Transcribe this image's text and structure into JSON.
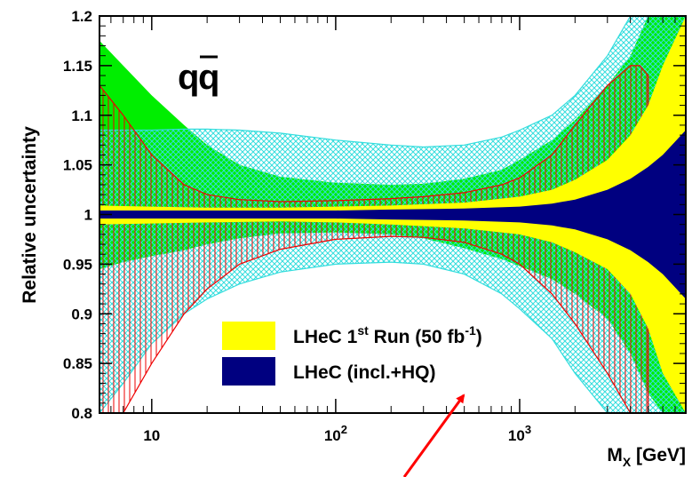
{
  "chart_data": {
    "type": "area",
    "title": "",
    "annotation": {
      "text": "q",
      "bar_text": "q"
    },
    "xlabel": {
      "main": "M",
      "sub": "X",
      "rest": " [GeV]"
    },
    "ylabel": "Relative uncertainty",
    "x_scale": "log",
    "xlim": [
      5.2,
      8000
    ],
    "ylim": [
      0.8,
      1.2
    ],
    "grid": false,
    "y_ticks": [
      "0.8",
      "0.85",
      "0.9",
      "0.95",
      "1",
      "1.05",
      "1.1",
      "1.15",
      "1.2"
    ],
    "x_ticks": [
      {
        "base": "10",
        "exp": ""
      },
      {
        "base": "10",
        "exp": "2"
      },
      {
        "base": "10",
        "exp": "3"
      }
    ],
    "legend_position": "bottom-center",
    "colors": {
      "green": "#00ee00",
      "yellow": "#ffff00",
      "navy": "#000080",
      "cyan": "#33dddd",
      "red": "#ee0000",
      "blue": "#1111cc",
      "arrow": "#ff0000"
    },
    "series": [
      {
        "name": "",
        "style": "green-fill",
        "x": [
          5.2,
          7,
          10,
          15,
          20,
          30,
          50,
          100,
          200,
          300,
          500,
          800,
          1000,
          1500,
          2000,
          3000,
          4000,
          5000,
          6000,
          8000
        ],
        "upper": [
          1.175,
          1.15,
          1.12,
          1.09,
          1.07,
          1.05,
          1.038,
          1.032,
          1.03,
          1.031,
          1.036,
          1.045,
          1.055,
          1.075,
          1.095,
          1.13,
          1.16,
          1.2,
          1.2,
          1.2
        ],
        "lower": [
          0.945,
          0.952,
          0.958,
          0.964,
          0.97,
          0.976,
          0.981,
          0.982,
          0.98,
          0.976,
          0.966,
          0.955,
          0.948,
          0.935,
          0.92,
          0.895,
          0.86,
          0.82,
          0.8,
          0.8
        ]
      },
      {
        "name": "",
        "style": "cyan-hatch",
        "x": [
          5.2,
          7,
          10,
          15,
          20,
          30,
          50,
          100,
          200,
          300,
          500,
          800,
          1000,
          1500,
          2000,
          3000,
          4000,
          5000,
          6000,
          8000
        ],
        "upper": [
          1.085,
          1.085,
          1.085,
          1.086,
          1.086,
          1.085,
          1.082,
          1.075,
          1.07,
          1.068,
          1.07,
          1.078,
          1.085,
          1.1,
          1.12,
          1.16,
          1.2,
          1.2,
          1.2,
          1.2
        ],
        "lower": [
          0.8,
          0.83,
          0.87,
          0.9,
          0.915,
          0.93,
          0.942,
          0.95,
          0.952,
          0.95,
          0.94,
          0.92,
          0.905,
          0.875,
          0.84,
          0.8,
          0.8,
          0.8,
          0.8,
          0.8
        ]
      },
      {
        "name": "",
        "style": "red-hatch",
        "x": [
          5.2,
          7,
          10,
          15,
          20,
          30,
          50,
          100,
          200,
          300,
          500,
          800,
          1000,
          1500,
          2000,
          3000,
          4000,
          4500,
          5000
        ],
        "upper": [
          1.13,
          1.1,
          1.06,
          1.03,
          1.02,
          1.015,
          1.013,
          1.014,
          1.016,
          1.018,
          1.022,
          1.03,
          1.037,
          1.06,
          1.09,
          1.13,
          1.15,
          1.15,
          1.14
        ],
        "lower": [
          0.8,
          0.8,
          0.85,
          0.9,
          0.925,
          0.95,
          0.965,
          0.975,
          0.978,
          0.977,
          0.972,
          0.96,
          0.95,
          0.92,
          0.89,
          0.84,
          0.8,
          0.8,
          0.8
        ]
      },
      {
        "name": "LHeC 1st Run (50 fb-1)",
        "style": "yellow-fill",
        "x": [
          5.2,
          10,
          20,
          50,
          100,
          200,
          500,
          1000,
          1500,
          2000,
          3000,
          4000,
          5000,
          6000,
          8000
        ],
        "upper": [
          1.009,
          1.008,
          1.007,
          1.007,
          1.008,
          1.009,
          1.012,
          1.018,
          1.025,
          1.035,
          1.055,
          1.08,
          1.11,
          1.15,
          1.2
        ],
        "lower": [
          0.99,
          0.991,
          0.992,
          0.993,
          0.992,
          0.99,
          0.986,
          0.98,
          0.972,
          0.962,
          0.945,
          0.92,
          0.885,
          0.84,
          0.8
        ]
      },
      {
        "name": "LHeC (incl.+HQ)",
        "style": "navy-fill",
        "x": [
          5.2,
          10,
          20,
          50,
          100,
          200,
          500,
          1000,
          1500,
          2000,
          3000,
          4000,
          5000,
          6000,
          8000
        ],
        "upper": [
          1.004,
          1.004,
          1.004,
          1.004,
          1.004,
          1.005,
          1.006,
          1.008,
          1.011,
          1.015,
          1.025,
          1.036,
          1.048,
          1.06,
          1.085
        ],
        "lower": [
          0.996,
          0.996,
          0.996,
          0.996,
          0.996,
          0.995,
          0.994,
          0.992,
          0.989,
          0.985,
          0.975,
          0.964,
          0.952,
          0.94,
          0.915
        ]
      }
    ],
    "legend": [
      {
        "color_key": "yellow",
        "label": "LHeC 1",
        "sup": "st",
        "rest": " Run (50 fb",
        "sup2": "-1",
        "end": ")"
      },
      {
        "color_key": "navy",
        "label": "LHeC (incl.+HQ)",
        "sup": "",
        "rest": "",
        "sup2": "",
        "end": ""
      }
    ]
  }
}
